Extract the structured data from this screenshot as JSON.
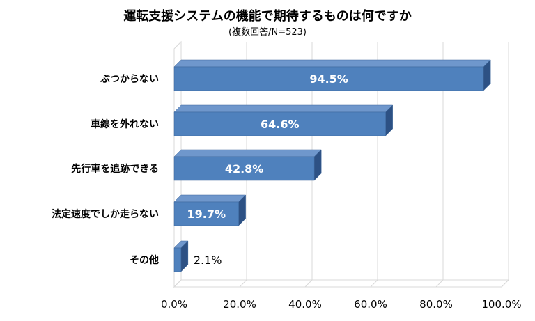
{
  "chart_data": {
    "type": "bar",
    "orientation": "horizontal",
    "title": "運転支援システムの機能で期待するものは何ですか",
    "subtitle": "(複数回答/N=523)",
    "categories": [
      "ぶつからない",
      "車線を外れない",
      "先行車を追跡できる",
      "法定速度でしか走らない",
      "その他"
    ],
    "values": [
      94.5,
      64.6,
      42.8,
      19.7,
      2.1
    ],
    "value_labels": [
      "94.5%",
      "64.6%",
      "42.8%",
      "19.7%",
      "2.1%"
    ],
    "xlim": [
      0,
      100
    ],
    "x_ticks": [
      0,
      20,
      40,
      60,
      80,
      100
    ],
    "x_tick_labels": [
      "0.0%",
      "20.0%",
      "40.0%",
      "60.0%",
      "80.0%",
      "100.0%"
    ],
    "grid": true,
    "three_d": true,
    "colors": {
      "bar_front": "#4f81bd",
      "bar_top": "#6f97cc",
      "bar_side": "#2d5184",
      "bar_edge": "#3b659a",
      "grid": "#d9d9d9",
      "label_inside": "#ffffff",
      "label_outside": "#000000",
      "text": "#000000"
    }
  }
}
